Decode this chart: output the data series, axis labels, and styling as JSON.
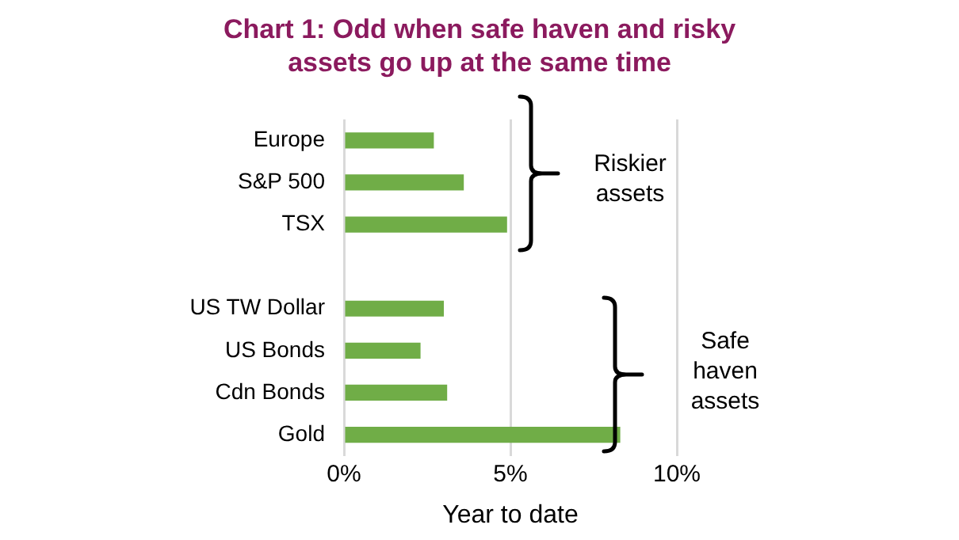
{
  "chart_data": {
    "type": "bar",
    "orientation": "horizontal",
    "title": "Chart 1: Odd when safe haven and risky assets go up at the same time",
    "categories": [
      "Europe",
      "S&P 500",
      "TSX",
      null,
      "US TW Dollar",
      "US Bonds",
      "Cdn Bonds",
      "Gold"
    ],
    "values": [
      2.7,
      3.6,
      4.9,
      null,
      3.0,
      2.3,
      3.1,
      8.3
    ],
    "color": "#70ad47",
    "xlabel": "Year to date",
    "xlim": [
      0,
      10
    ],
    "xticks": [
      {
        "value": 0,
        "label": "0%"
      },
      {
        "value": 5,
        "label": "5%"
      },
      {
        "value": 10,
        "label": "10%"
      }
    ],
    "grid": "x",
    "legend": false,
    "annotations": [
      "Riskier assets",
      "Safe haven assets"
    ]
  }
}
